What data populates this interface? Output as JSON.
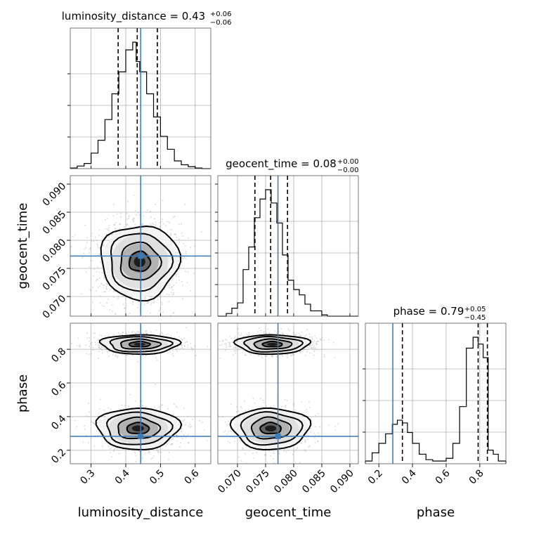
{
  "chart_data": {
    "type": "corner",
    "parameters": [
      "luminosity_distance",
      "geocent_time",
      "phase"
    ],
    "titles": [
      {
        "main": "luminosity_distance = 0.43",
        "plus": "+0.06",
        "minus": "−0.06"
      },
      {
        "main": "geocent_time = 0.08",
        "plus": "+0.00",
        "minus": "−0.00"
      },
      {
        "main": "phase = 0.79",
        "plus": "+0.05",
        "minus": "−0.45"
      }
    ],
    "ranges": {
      "luminosity_distance": [
        0.24,
        0.645
      ],
      "geocent_time": [
        0.0665,
        0.0915
      ],
      "phase": [
        0.12,
        0.955
      ]
    },
    "ticks": {
      "luminosity_distance": [
        "0.3",
        "0.4",
        "0.5",
        "0.6"
      ],
      "geocent_time": [
        "0.070",
        "0.075",
        "0.080",
        "0.085",
        "0.090"
      ],
      "phase": [
        "0.2",
        "0.4",
        "0.6",
        "0.8"
      ]
    },
    "truths": {
      "luminosity_distance": 0.443,
      "geocent_time": 0.0772,
      "phase": 0.283
    },
    "quantiles": {
      "luminosity_distance": [
        0.378,
        0.433,
        0.491
      ],
      "geocent_time": [
        0.0731,
        0.0759,
        0.0789
      ],
      "phase": [
        0.34,
        0.79,
        0.845
      ]
    },
    "histograms": {
      "luminosity_distance": {
        "edges": [
          0.24,
          0.26,
          0.28,
          0.3,
          0.32,
          0.34,
          0.36,
          0.38,
          0.4,
          0.42,
          0.43,
          0.44,
          0.46,
          0.48,
          0.5,
          0.52,
          0.54,
          0.56,
          0.58,
          0.6,
          0.62,
          0.645
        ],
        "counts": [
          0.005,
          0.02,
          0.04,
          0.12,
          0.22,
          0.38,
          0.58,
          0.75,
          0.92,
          0.98,
          0.83,
          0.75,
          0.58,
          0.4,
          0.25,
          0.15,
          0.06,
          0.03,
          0.015,
          0.005,
          0
        ]
      },
      "geocent_time": {
        "edges": [
          0.0665,
          0.068,
          0.069,
          0.07,
          0.071,
          0.072,
          0.073,
          0.074,
          0.075,
          0.076,
          0.077,
          0.078,
          0.079,
          0.08,
          0.081,
          0.082,
          0.083,
          0.084,
          0.085,
          0.086,
          0.0915
        ],
        "counts": [
          0,
          0.02,
          0.06,
          0.1,
          0.35,
          0.52,
          0.74,
          0.88,
          0.95,
          0.85,
          0.7,
          0.46,
          0.27,
          0.2,
          0.16,
          0.09,
          0.04,
          0.04,
          0.01,
          0
        ]
      },
      "phase": {
        "edges": [
          0.12,
          0.16,
          0.2,
          0.24,
          0.28,
          0.31,
          0.34,
          0.37,
          0.4,
          0.44,
          0.48,
          0.52,
          0.56,
          0.6,
          0.64,
          0.68,
          0.72,
          0.76,
          0.79,
          0.82,
          0.85,
          0.88,
          0.91,
          0.955
        ],
        "counts": [
          0.02,
          0.08,
          0.15,
          0.22,
          0.29,
          0.32,
          0.3,
          0.23,
          0.15,
          0.07,
          0.03,
          0.02,
          0.02,
          0.04,
          0.15,
          0.42,
          0.85,
          0.93,
          0.88,
          0.78,
          0.1,
          0.07,
          0.02
        ]
      }
    }
  }
}
